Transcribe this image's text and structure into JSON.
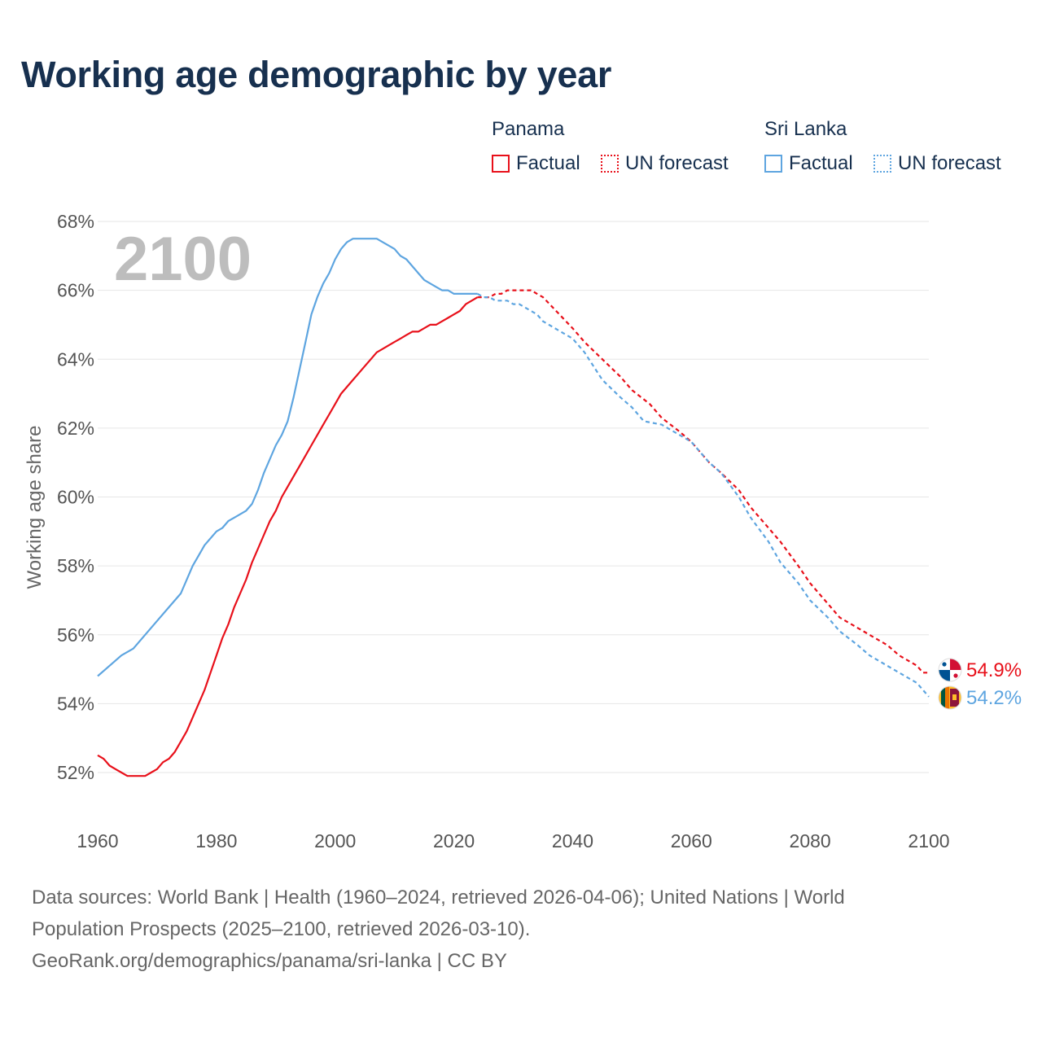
{
  "title": "Working age demographic by year",
  "legend": {
    "groups": [
      {
        "country": "Panama",
        "factual": "Factual",
        "forecast": "UN forecast",
        "color": "#e8101a"
      },
      {
        "country": "Sri Lanka",
        "factual": "Factual",
        "forecast": "UN forecast",
        "color": "#5ea5e0"
      }
    ]
  },
  "year_watermark": "2100",
  "footer": {
    "line1": "Data sources: World Bank | Health (1960–2024, retrieved 2026-04-06); United Nations | World",
    "line2": "Population Prospects (2025–2100, retrieved 2026-03-10).",
    "line3": "GeoRank.org/demographics/panama/sri-lanka | CC BY"
  },
  "chart_data": {
    "type": "line",
    "title": "Working age demographic by year",
    "ylabel": "Working age share",
    "xlabel": "",
    "xlim": [
      1960,
      2100
    ],
    "ylim": [
      51,
      68
    ],
    "x_ticks": [
      1960,
      1980,
      2000,
      2020,
      2040,
      2060,
      2080,
      2100
    ],
    "x_tick_labels": [
      "1960",
      "1980",
      "2000",
      "2020",
      "2040",
      "2060",
      "2080",
      "2100"
    ],
    "y_ticks": [
      52,
      54,
      56,
      58,
      60,
      62,
      64,
      66,
      68
    ],
    "y_tick_labels": [
      "52%",
      "54%",
      "56%",
      "58%",
      "60%",
      "62%",
      "64%",
      "66%",
      "68%"
    ],
    "grid": "horizontal",
    "series": [
      {
        "name": "Panama",
        "color": "#e8101a",
        "end_label": "54.9%",
        "flag": "panama",
        "factual": {
          "x": [
            1960,
            1961,
            1962,
            1963,
            1964,
            1965,
            1966,
            1967,
            1968,
            1969,
            1970,
            1971,
            1972,
            1973,
            1974,
            1975,
            1976,
            1977,
            1978,
            1979,
            1980,
            1981,
            1982,
            1983,
            1984,
            1985,
            1986,
            1987,
            1988,
            1989,
            1990,
            1991,
            1992,
            1993,
            1994,
            1995,
            1996,
            1997,
            1998,
            1999,
            2000,
            2001,
            2002,
            2003,
            2004,
            2005,
            2006,
            2007,
            2008,
            2009,
            2010,
            2011,
            2012,
            2013,
            2014,
            2015,
            2016,
            2017,
            2018,
            2019,
            2020,
            2021,
            2022,
            2023,
            2024
          ],
          "y": [
            52.5,
            52.4,
            52.2,
            52.1,
            52.0,
            51.9,
            51.9,
            51.9,
            51.9,
            52.0,
            52.1,
            52.3,
            52.4,
            52.6,
            52.9,
            53.2,
            53.6,
            54.0,
            54.4,
            54.9,
            55.4,
            55.9,
            56.3,
            56.8,
            57.2,
            57.6,
            58.1,
            58.5,
            58.9,
            59.3,
            59.6,
            60.0,
            60.3,
            60.6,
            60.9,
            61.2,
            61.5,
            61.8,
            62.1,
            62.4,
            62.7,
            63.0,
            63.2,
            63.4,
            63.6,
            63.8,
            64.0,
            64.2,
            64.3,
            64.4,
            64.5,
            64.6,
            64.7,
            64.8,
            64.8,
            64.9,
            65.0,
            65.0,
            65.1,
            65.2,
            65.3,
            65.4,
            65.6,
            65.7,
            65.8
          ]
        },
        "forecast": {
          "x": [
            2024,
            2025,
            2026,
            2027,
            2028,
            2029,
            2030,
            2031,
            2032,
            2033,
            2034,
            2035,
            2040,
            2042,
            2045,
            2048,
            2050,
            2053,
            2055,
            2058,
            2060,
            2063,
            2065,
            2068,
            2070,
            2073,
            2075,
            2078,
            2080,
            2083,
            2085,
            2088,
            2090,
            2093,
            2095,
            2098,
            2099,
            2100
          ],
          "y": [
            65.8,
            65.8,
            65.8,
            65.9,
            65.9,
            66.0,
            66.0,
            66.0,
            66.0,
            66.0,
            65.9,
            65.8,
            64.9,
            64.5,
            64.0,
            63.5,
            63.1,
            62.7,
            62.3,
            61.9,
            61.6,
            61.0,
            60.7,
            60.2,
            59.7,
            59.1,
            58.7,
            58.0,
            57.5,
            56.9,
            56.5,
            56.2,
            56.0,
            55.7,
            55.4,
            55.1,
            54.9,
            54.9
          ]
        }
      },
      {
        "name": "Sri Lanka",
        "color": "#5ea5e0",
        "end_label": "54.2%",
        "flag": "sri-lanka",
        "factual": {
          "x": [
            1960,
            1962,
            1964,
            1966,
            1967,
            1968,
            1970,
            1972,
            1974,
            1976,
            1977,
            1978,
            1980,
            1981,
            1982,
            1983,
            1984,
            1985,
            1986,
            1987,
            1988,
            1989,
            1990,
            1991,
            1992,
            1993,
            1994,
            1995,
            1996,
            1997,
            1998,
            1999,
            2000,
            2001,
            2002,
            2003,
            2004,
            2005,
            2006,
            2007,
            2008,
            2009,
            2010,
            2011,
            2012,
            2013,
            2014,
            2015,
            2016,
            2017,
            2018,
            2019,
            2020,
            2021,
            2022,
            2023,
            2024
          ],
          "y": [
            54.8,
            55.1,
            55.4,
            55.6,
            55.8,
            56.0,
            56.4,
            56.8,
            57.2,
            58.0,
            58.3,
            58.6,
            59.0,
            59.1,
            59.3,
            59.4,
            59.5,
            59.6,
            59.8,
            60.2,
            60.7,
            61.1,
            61.5,
            61.8,
            62.2,
            62.9,
            63.7,
            64.5,
            65.3,
            65.8,
            66.2,
            66.5,
            66.9,
            67.2,
            67.4,
            67.5,
            67.5,
            67.5,
            67.5,
            67.5,
            67.4,
            67.3,
            67.2,
            67.0,
            66.9,
            66.7,
            66.5,
            66.3,
            66.2,
            66.1,
            66.0,
            66.0,
            65.9,
            65.9,
            65.9,
            65.9,
            65.9
          ]
        },
        "forecast": {
          "x": [
            2024,
            2025,
            2026,
            2027,
            2028,
            2029,
            2030,
            2031,
            2032,
            2033,
            2034,
            2035,
            2040,
            2042,
            2045,
            2048,
            2050,
            2052,
            2055,
            2058,
            2060,
            2063,
            2065,
            2068,
            2070,
            2073,
            2075,
            2078,
            2080,
            2083,
            2085,
            2088,
            2090,
            2093,
            2095,
            2098,
            2099,
            2100
          ],
          "y": [
            65.9,
            65.8,
            65.8,
            65.7,
            65.7,
            65.7,
            65.6,
            65.6,
            65.5,
            65.4,
            65.3,
            65.1,
            64.6,
            64.2,
            63.4,
            62.9,
            62.6,
            62.2,
            62.1,
            61.8,
            61.6,
            61.0,
            60.7,
            60.0,
            59.4,
            58.7,
            58.1,
            57.5,
            57.0,
            56.5,
            56.1,
            55.7,
            55.4,
            55.1,
            54.9,
            54.6,
            54.4,
            54.2
          ]
        }
      }
    ]
  }
}
